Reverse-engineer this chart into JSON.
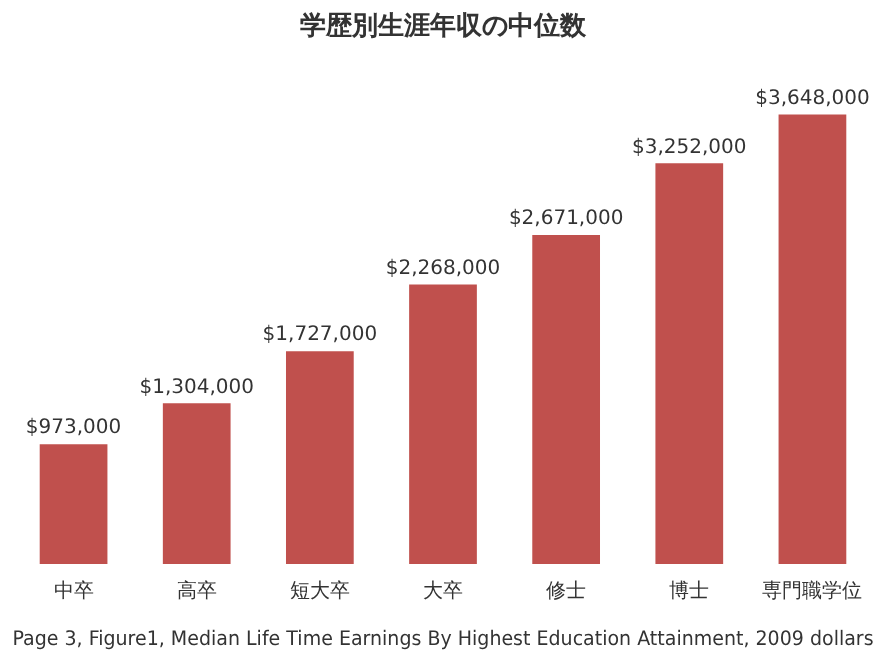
{
  "chart_data": {
    "type": "bar",
    "title": "学歴別生涯年収の中位数",
    "categories": [
      "中卒",
      "高卒",
      "短大卒",
      "大卒",
      "修士",
      "博士",
      "専門職学位"
    ],
    "values": [
      973000,
      1304000,
      1727000,
      2268000,
      2671000,
      3252000,
      3648000
    ],
    "value_labels": [
      "$973,000",
      "$1,304,000",
      "$1,727,000",
      "$2,268,000",
      "$2,671,000",
      "$3,252,000",
      "$3,648,000"
    ],
    "color": "#c0504d",
    "annotations": [
      "Page 3, Figure1, Median Life Time Earnings By Highest Education Attainment, 2009 dollars"
    ],
    "grid": false,
    "legend": false
  }
}
